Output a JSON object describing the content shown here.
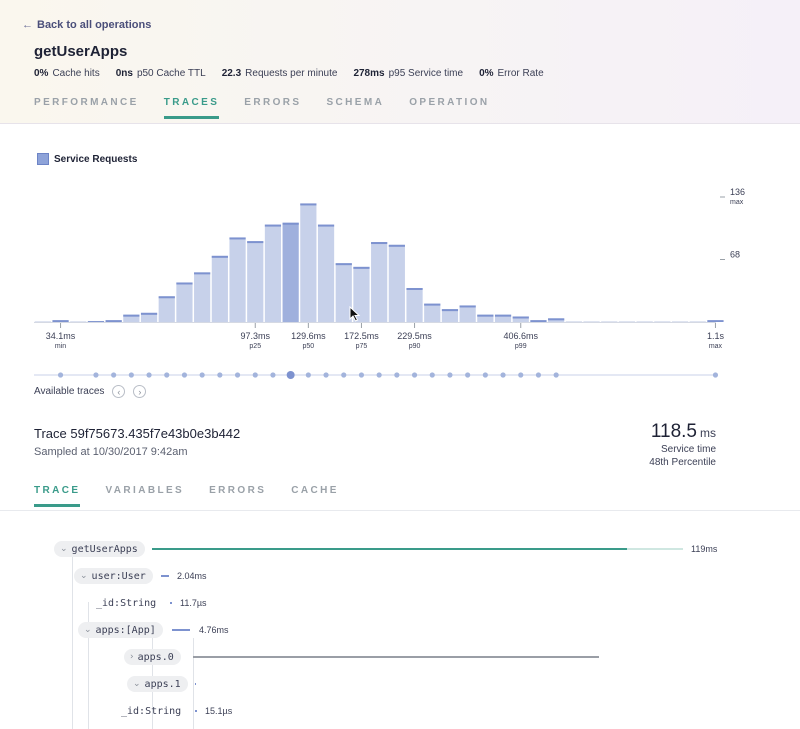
{
  "header": {
    "back_label": "Back to all operations",
    "operation_name": "getUserApps",
    "stats": [
      {
        "value": "0%",
        "label": "Cache hits"
      },
      {
        "value": "0ns",
        "label": "p50 Cache TTL"
      },
      {
        "value": "22.3",
        "label": "Requests per minute"
      },
      {
        "value": "278ms",
        "label": "p95 Service time"
      },
      {
        "value": "0%",
        "label": "Error Rate"
      }
    ],
    "tabs": [
      "PERFORMANCE",
      "TRACES",
      "ERRORS",
      "SCHEMA",
      "OPERATION"
    ],
    "active_tab": "TRACES"
  },
  "chart_data": {
    "type": "bar",
    "legend": "Service Requests",
    "values": [
      0,
      2,
      0,
      1,
      2,
      8,
      10,
      28,
      43,
      54,
      72,
      92,
      88,
      106,
      108,
      129,
      106,
      64,
      60,
      87,
      84,
      37,
      20,
      14,
      18,
      8,
      8,
      6,
      2,
      4,
      0,
      0,
      0,
      0,
      0,
      0,
      0,
      0,
      2
    ],
    "highlight_index": 14,
    "ylim": [
      0,
      136
    ],
    "y_ticks": [
      {
        "value": 136,
        "label": "136",
        "sub": "max"
      },
      {
        "value": 68,
        "label": "68",
        "sub": ""
      }
    ],
    "x_ticks": [
      {
        "bin": 1,
        "label": "34.1ms",
        "sub": "min"
      },
      {
        "bin": 12,
        "label": "97.3ms",
        "sub": "p25"
      },
      {
        "bin": 15,
        "label": "129.6ms",
        "sub": "p50"
      },
      {
        "bin": 18,
        "label": "172.5ms",
        "sub": "p75"
      },
      {
        "bin": 21,
        "label": "229.5ms",
        "sub": "p90"
      },
      {
        "bin": 27,
        "label": "406.6ms",
        "sub": "p99"
      },
      {
        "bin": 38,
        "label": "1.1s",
        "sub": "max"
      }
    ],
    "trace_dots": [
      1,
      3,
      4,
      5,
      6,
      7,
      8,
      9,
      10,
      11,
      12,
      13,
      14,
      15,
      16,
      17,
      18,
      19,
      20,
      21,
      22,
      23,
      24,
      25,
      26,
      27,
      28,
      29,
      38
    ],
    "selected_dot": 14
  },
  "available_traces_label": "Available traces",
  "trace": {
    "title": "Trace 59f75673.435f7e43b0e3b442",
    "sampled": "Sampled at 10/30/2017 9:42am",
    "service_value": "118.5",
    "service_unit": "ms",
    "service_label": "Service time",
    "percentile_label": "48th Percentile"
  },
  "trace_tabs": [
    "TRACE",
    "VARIABLES",
    "ERRORS",
    "CACHE"
  ],
  "active_trace_tab": "TRACE",
  "tree": [
    {
      "label": "getUserApps",
      "chevron": "down",
      "duration": "119ms"
    },
    {
      "label": "user:User",
      "chevron": "down",
      "duration": "2.04ms"
    },
    {
      "label": "_id:String",
      "chevron": "",
      "duration": "11.7µs"
    },
    {
      "label": "apps:[App]",
      "chevron": "down",
      "duration": "4.76ms"
    },
    {
      "label": "apps.0",
      "chevron": "right",
      "duration": ""
    },
    {
      "label": "apps.1",
      "chevron": "down",
      "duration": ""
    },
    {
      "label": "_id:String",
      "chevron": "",
      "duration": "15.1µs"
    }
  ],
  "colors": {
    "accent": "#3a9b8a",
    "bar": "#c7d1ea",
    "bar_top": "#7d92cf",
    "bar_highlight": "#9fb0dd",
    "dot": "#a3b4dc"
  },
  "icons": {
    "back": "arrow-left-icon",
    "prev": "chevron-left-icon",
    "next": "chevron-right-icon",
    "cursor": "mouse-pointer-icon"
  }
}
